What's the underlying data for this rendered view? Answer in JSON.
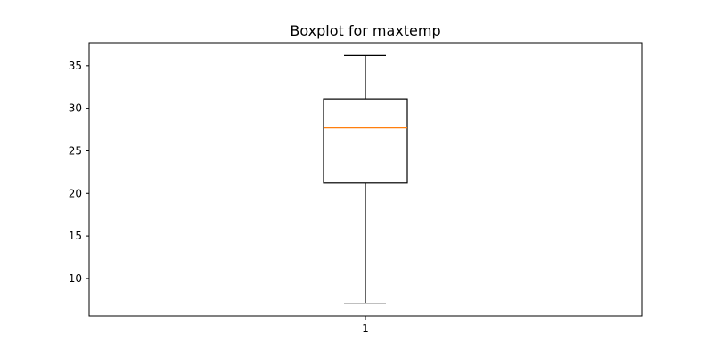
{
  "chart_data": {
    "type": "boxplot",
    "title": "Boxplot for maxtemp",
    "xlabel": "",
    "ylabel": "",
    "categories": [
      "1"
    ],
    "box": {
      "whisker_low": 7.1,
      "q1": 21.2,
      "median": 27.7,
      "q3": 31.1,
      "whisker_high": 36.2
    },
    "ylim": [
      5.6,
      37.7
    ],
    "yticks": [
      10,
      15,
      20,
      25,
      30,
      35
    ],
    "grid": false,
    "colors": {
      "box": "#000000",
      "median": "#ff7f0e",
      "whisker": "#000000"
    }
  }
}
